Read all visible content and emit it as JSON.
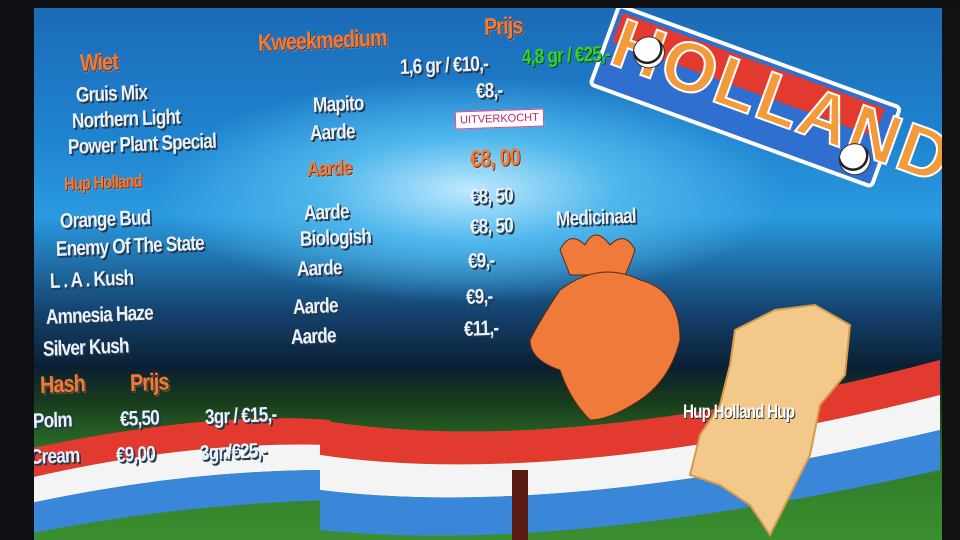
{
  "logo": {
    "text": "HOLLAND"
  },
  "wiet": {
    "heading": "Wiet",
    "medium_heading": "Kweekmedium",
    "price_heading": "Prijs",
    "bulk_offer": "1,6 gr / €10,-",
    "bulk_offer_green": "4,8 gr / €25,-",
    "items": [
      {
        "name": "Gruis Mix",
        "medium": "",
        "price": "€8,-"
      },
      {
        "name": "Northern  Light",
        "medium": "Mapito",
        "price": ""
      },
      {
        "name": "Power Plant  Special",
        "medium": "Aarde",
        "price": "UITVERKOCHT"
      }
    ]
  },
  "hup_holland": {
    "heading": "Hup Holland",
    "medium": "Aarde",
    "price": "€8, 00",
    "items": [
      {
        "name": "Orange Bud",
        "medium": "Aarde",
        "price": "€8, 50",
        "note": ""
      },
      {
        "name": "Enemy Of The State",
        "medium": "Biologish",
        "price": "€8, 50",
        "note": "Medicinaal"
      },
      {
        "name": "L . A . Kush",
        "medium": "Aarde",
        "price": "€9,-",
        "note": ""
      },
      {
        "name": "Amnesia Haze",
        "medium": "Aarde",
        "price": "€9,-",
        "note": ""
      },
      {
        "name": "Silver Kush",
        "medium": "Aarde",
        "price": "€11,-",
        "note": ""
      }
    ]
  },
  "hash": {
    "heading": "Hash",
    "price_heading": "Prijs",
    "items": [
      {
        "name": "Polm",
        "price": "€5,50",
        "bulk": "3gr / €15,-"
      },
      {
        "name": "Cream",
        "price": "€9,00",
        "bulk": "3gr./€25,-"
      }
    ]
  },
  "slogan": "Hup Holland Hup",
  "colors": {
    "orange": "#f07a3a",
    "green": "#35d12c",
    "sold_out": "#c2246a",
    "flag_red": "#e23a2e",
    "flag_blue": "#3a86d8"
  }
}
